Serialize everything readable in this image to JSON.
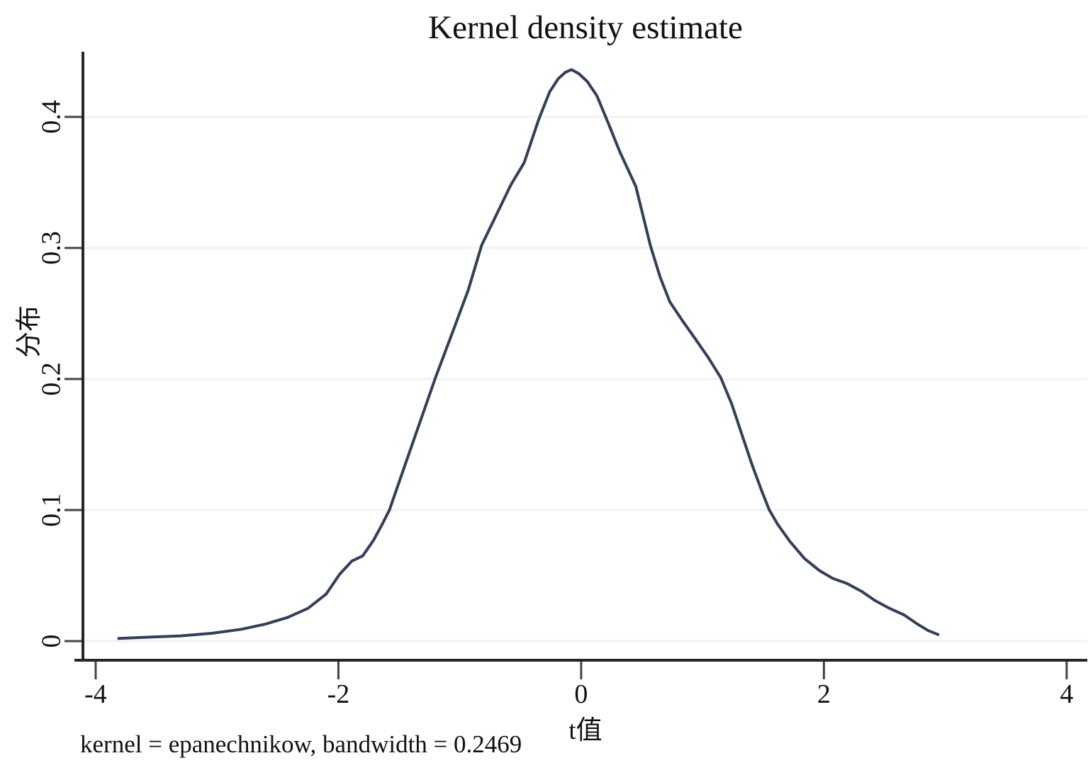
{
  "chart_data": {
    "type": "line",
    "title": "Kernel density estimate",
    "xlabel": "t值",
    "ylabel": "分布",
    "note": "kernel = epanechnikow, bandwidth = 0.2469",
    "xlim": [
      -4.105,
      4.17
    ],
    "ylim": [
      -0.0146,
      0.4497
    ],
    "xticks": [
      -4,
      -2,
      0,
      2,
      4
    ],
    "xtick_labels": [
      "-4",
      "-2",
      "0",
      "2",
      "4"
    ],
    "yticks": [
      0,
      0.1,
      0.2,
      0.3,
      0.4
    ],
    "ytick_labels": [
      "0",
      "0.1",
      "0.2",
      "0.3",
      "0.4"
    ],
    "grid": "horizontal",
    "legend": "none",
    "series": [
      {
        "name": "kernel-density",
        "x": [
          -3.81,
          -3.56,
          -3.3,
          -3.04,
          -2.8,
          -2.6,
          -2.42,
          -2.25,
          -2.1,
          -1.99,
          -1.89,
          -1.8,
          -1.71,
          -1.64,
          -1.58,
          -1.46,
          -1.34,
          -1.2,
          -1.05,
          -0.93,
          -0.82,
          -0.7,
          -0.58,
          -0.47,
          -0.35,
          -0.26,
          -0.19,
          -0.13,
          -0.08,
          -0.02,
          0.05,
          0.13,
          0.22,
          0.32,
          0.45,
          0.57,
          0.65,
          0.73,
          0.83,
          0.93,
          1.05,
          1.15,
          1.24,
          1.33,
          1.41,
          1.49,
          1.55,
          1.62,
          1.72,
          1.84,
          1.96,
          2.07,
          2.19,
          2.31,
          2.42,
          2.54,
          2.66,
          2.77,
          2.86,
          2.94
        ],
        "y": [
          0.002,
          0.003,
          0.004,
          0.006,
          0.009,
          0.013,
          0.018,
          0.025,
          0.036,
          0.051,
          0.061,
          0.065,
          0.077,
          0.089,
          0.1,
          0.132,
          0.164,
          0.201,
          0.238,
          0.268,
          0.302,
          0.325,
          0.348,
          0.365,
          0.398,
          0.419,
          0.429,
          0.434,
          0.436,
          0.433,
          0.427,
          0.416,
          0.396,
          0.373,
          0.347,
          0.302,
          0.278,
          0.259,
          0.245,
          0.232,
          0.216,
          0.201,
          0.181,
          0.156,
          0.134,
          0.114,
          0.1,
          0.089,
          0.076,
          0.063,
          0.054,
          0.048,
          0.044,
          0.038,
          0.031,
          0.025,
          0.02,
          0.013,
          0.008,
          0.005
        ]
      }
    ],
    "colors": {
      "line": "#333f58",
      "grid": "#f2f2f3",
      "axis": "#262626",
      "tick": "#444444",
      "text": "#111111"
    }
  }
}
